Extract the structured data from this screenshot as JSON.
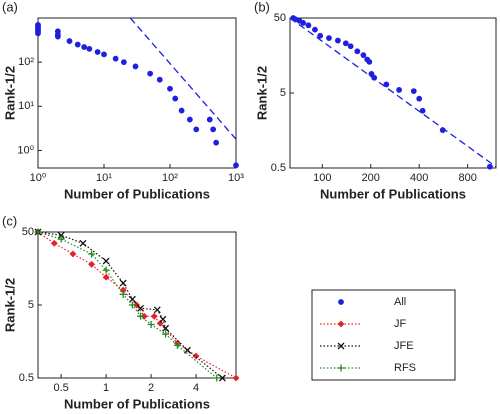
{
  "chart_data": [
    {
      "type": "scatter",
      "label": "(a)",
      "xlabel": "Number of Publications",
      "ylabel": "Rank-1/2",
      "xscale": "log",
      "yscale": "log",
      "xlim": [
        1,
        1000
      ],
      "ylim": [
        0.4,
        1000
      ],
      "xticks": [
        {
          "value": 1,
          "label": "10⁰"
        },
        {
          "value": 10,
          "label": "10¹"
        },
        {
          "value": 100,
          "label": "10²"
        },
        {
          "value": 1000,
          "label": "10³"
        }
      ],
      "yticks": [
        {
          "value": 1,
          "label": "10⁰"
        },
        {
          "value": 10,
          "label": "10¹"
        },
        {
          "value": 100,
          "label": "10²"
        }
      ],
      "series": [
        {
          "name": "All",
          "color": "#1f1fdf",
          "marker": "dot",
          "x": [
            1,
            1,
            1,
            1,
            1,
            1,
            2,
            2,
            2,
            3,
            4,
            5,
            6,
            8,
            10,
            15,
            20,
            30,
            50,
            70,
            100,
            120,
            150,
            200,
            250,
            400,
            450,
            500,
            1000
          ],
          "y": [
            700,
            650,
            600,
            550,
            500,
            450,
            500,
            420,
            380,
            300,
            250,
            220,
            200,
            170,
            150,
            120,
            100,
            80,
            55,
            40,
            25,
            15,
            8,
            5,
            3,
            5,
            3,
            1.5,
            0.46
          ]
        },
        {
          "color": "#1f1fdf",
          "line": "dashed",
          "x": [
            25,
            1000
          ],
          "y": [
            1000,
            1.8
          ]
        }
      ]
    },
    {
      "type": "scatter",
      "label": "(b)",
      "xlabel": "Number of Publications",
      "ylabel": "Rank-1/2",
      "xscale": "log",
      "yscale": "log",
      "xlim": [
        63,
        1200
      ],
      "ylim": [
        0.5,
        50
      ],
      "xticks": [
        100,
        200,
        400,
        800
      ],
      "yticks": [
        0.5,
        5,
        50
      ],
      "series": [
        {
          "color": "#1f1fdf",
          "marker": "dot",
          "x": [
            66,
            68,
            72,
            76,
            82,
            90,
            97,
            110,
            125,
            140,
            150,
            165,
            180,
            190,
            196,
            202,
            210,
            250,
            300,
            370,
            400,
            420,
            560,
            1100
          ],
          "y": [
            50,
            48,
            46,
            43,
            40,
            35,
            29,
            27,
            25,
            23,
            21,
            18,
            16,
            14,
            13,
            9,
            8,
            6.5,
            5.5,
            5.3,
            4.2,
            2.9,
            1.6,
            0.52
          ]
        },
        {
          "color": "#1f1fdf",
          "line": "dashed",
          "x": [
            63,
            1200
          ],
          "y": [
            50,
            0.52
          ]
        }
      ]
    },
    {
      "type": "line",
      "label": "(c)",
      "xlabel": "Number of Publications",
      "ylabel": "Rank-1/2",
      "xscale": "log",
      "yscale": "log",
      "xlim": [
        0.35,
        7.4
      ],
      "ylim": [
        0.5,
        50
      ],
      "xticks": [
        0.5,
        1,
        2,
        4
      ],
      "yticks": [
        0.5,
        5,
        50
      ],
      "series": [
        {
          "name": "JF",
          "color": "#e8202a",
          "marker": "diamond",
          "line": "dotted",
          "x": [
            0.35,
            0.45,
            0.6,
            0.8,
            1,
            1.3,
            1.6,
            1.8,
            2.1,
            2.3,
            3,
            4,
            7.4
          ],
          "y": [
            50,
            35,
            25,
            18,
            12,
            8,
            5,
            3.5,
            3.5,
            2.8,
            1.5,
            1,
            0.5
          ]
        },
        {
          "name": "JFE",
          "color": "#111111",
          "marker": "x",
          "line": "dotted",
          "x": [
            0.35,
            0.5,
            0.7,
            1,
            1.3,
            1.5,
            1.7,
            2.2,
            2.4,
            2.5,
            3.5,
            6
          ],
          "y": [
            50,
            45,
            35,
            20,
            10,
            6,
            4.5,
            4.3,
            3.2,
            2.4,
            1.2,
            0.5
          ]
        },
        {
          "name": "RFS",
          "color": "#1e8c1e",
          "marker": "plus",
          "line": "dotted",
          "x": [
            0.35,
            0.5,
            0.8,
            1,
            1.3,
            1.5,
            1.7,
            2,
            2.5,
            3,
            5.5
          ],
          "y": [
            50,
            40,
            25,
            15,
            7,
            5,
            3.5,
            2.7,
            2,
            1.4,
            0.5
          ]
        }
      ]
    }
  ]
}
